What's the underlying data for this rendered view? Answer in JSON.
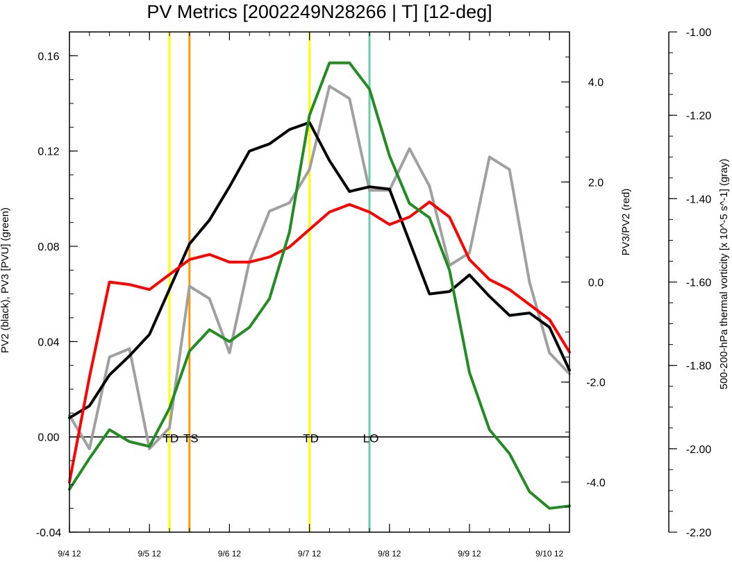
{
  "chart_data": {
    "type": "line",
    "title": "PV Metrics [2002249N28266 | T] [12-deg]",
    "x_tick_labels": [
      "9/4 12",
      "9/5 12",
      "9/6 12",
      "9/7 12",
      "9/8 12",
      "9/9 12",
      "9/10 12"
    ],
    "x_tick_days": [
      0,
      1,
      2,
      3,
      4,
      5,
      6
    ],
    "xlim": [
      0,
      6.25
    ],
    "left_axis": {
      "label": "PV2 (black), PV3 [PVU] (green)",
      "ylim": [
        -0.04,
        0.17
      ],
      "tick_values": [
        -0.04,
        0.0,
        0.04,
        0.08,
        0.12,
        0.16
      ],
      "tick_labels": [
        "-0.04",
        "0.00",
        "0.04",
        "0.08",
        "0.12",
        "0.16"
      ]
    },
    "right_axis": {
      "label": "PV3/PV2 (red)",
      "ylim": [
        -5.0,
        5.0
      ],
      "tick_values": [
        -4.0,
        -2.0,
        0.0,
        2.0,
        4.0
      ],
      "tick_labels": [
        "-4.0",
        "-2.0",
        "0.0",
        "2.0",
        "4.0"
      ]
    },
    "far_right_axis": {
      "label": "500-200-hPa thermal vorticity [x 10^-5 s^-1] (gray)",
      "ylim": [
        -2.2,
        -1.0
      ],
      "tick_values": [
        -2.2,
        -2.0,
        -1.8,
        -1.6,
        -1.4,
        -1.2,
        -1.0
      ],
      "tick_labels": [
        "-2.20",
        "-2.00",
        "-1.80",
        "-1.60",
        "-1.40",
        "-1.20",
        "-1.00"
      ]
    },
    "x": [
      0,
      0.25,
      0.5,
      0.75,
      1.0,
      1.25,
      1.5,
      1.75,
      2.0,
      2.25,
      2.5,
      2.75,
      3.0,
      3.25,
      3.5,
      3.75,
      4.0,
      4.25,
      4.5,
      4.75,
      5.0,
      5.25,
      5.5,
      5.75,
      6.0,
      6.25
    ],
    "series": [
      {
        "name": "PV2",
        "axis": "left",
        "color": "#000000",
        "values": [
          0.008,
          0.013,
          0.026,
          0.034,
          0.043,
          0.062,
          0.081,
          0.091,
          0.105,
          0.12,
          0.123,
          0.129,
          0.132,
          0.116,
          0.103,
          0.105,
          0.104,
          0.082,
          0.06,
          0.061,
          0.068,
          0.059,
          0.051,
          0.052,
          0.046,
          0.028
        ]
      },
      {
        "name": "PV3",
        "axis": "left",
        "color": "#228b22",
        "values": [
          -0.022,
          -0.009,
          0.003,
          -0.002,
          -0.004,
          0.012,
          0.036,
          0.045,
          0.04,
          0.046,
          0.058,
          0.086,
          0.135,
          0.157,
          0.157,
          0.146,
          0.118,
          0.098,
          0.092,
          0.07,
          0.027,
          0.003,
          -0.007,
          -0.023,
          -0.03,
          -0.029
        ]
      },
      {
        "name": "PV3/PV2",
        "axis": "right",
        "color": "#ff0000",
        "values": [
          -4.0,
          -1.9,
          0.0,
          -0.05,
          -0.15,
          0.15,
          0.45,
          0.55,
          0.4,
          0.4,
          0.5,
          0.7,
          1.05,
          1.4,
          1.55,
          1.4,
          1.15,
          1.3,
          1.6,
          1.3,
          0.45,
          0.05,
          -0.15,
          -0.45,
          -0.75,
          -1.4
        ]
      },
      {
        "name": "500-200-hPa thermal vorticity",
        "axis": "far_right",
        "color": "#a0a0a0",
        "values": [
          -1.92,
          -2.0,
          -1.78,
          -1.76,
          -2.0,
          -1.95,
          -1.61,
          -1.64,
          -1.77,
          -1.55,
          -1.43,
          -1.41,
          -1.33,
          -1.13,
          -1.16,
          -1.38,
          -1.38,
          -1.28,
          -1.37,
          -1.56,
          -1.53,
          -1.3,
          -1.33,
          -1.6,
          -1.77,
          -1.82
        ]
      }
    ],
    "event_lines": [
      {
        "label": "TD",
        "x": 1.25,
        "color": "#ffff00"
      },
      {
        "label": "TS",
        "x": 1.5,
        "color": "#ff9900"
      },
      {
        "label": "TD",
        "x": 3.0,
        "color": "#ffff00"
      },
      {
        "label": "LO",
        "x": 3.75,
        "color": "#66ccaa"
      }
    ],
    "zero_line": 0.0,
    "grid": false
  }
}
